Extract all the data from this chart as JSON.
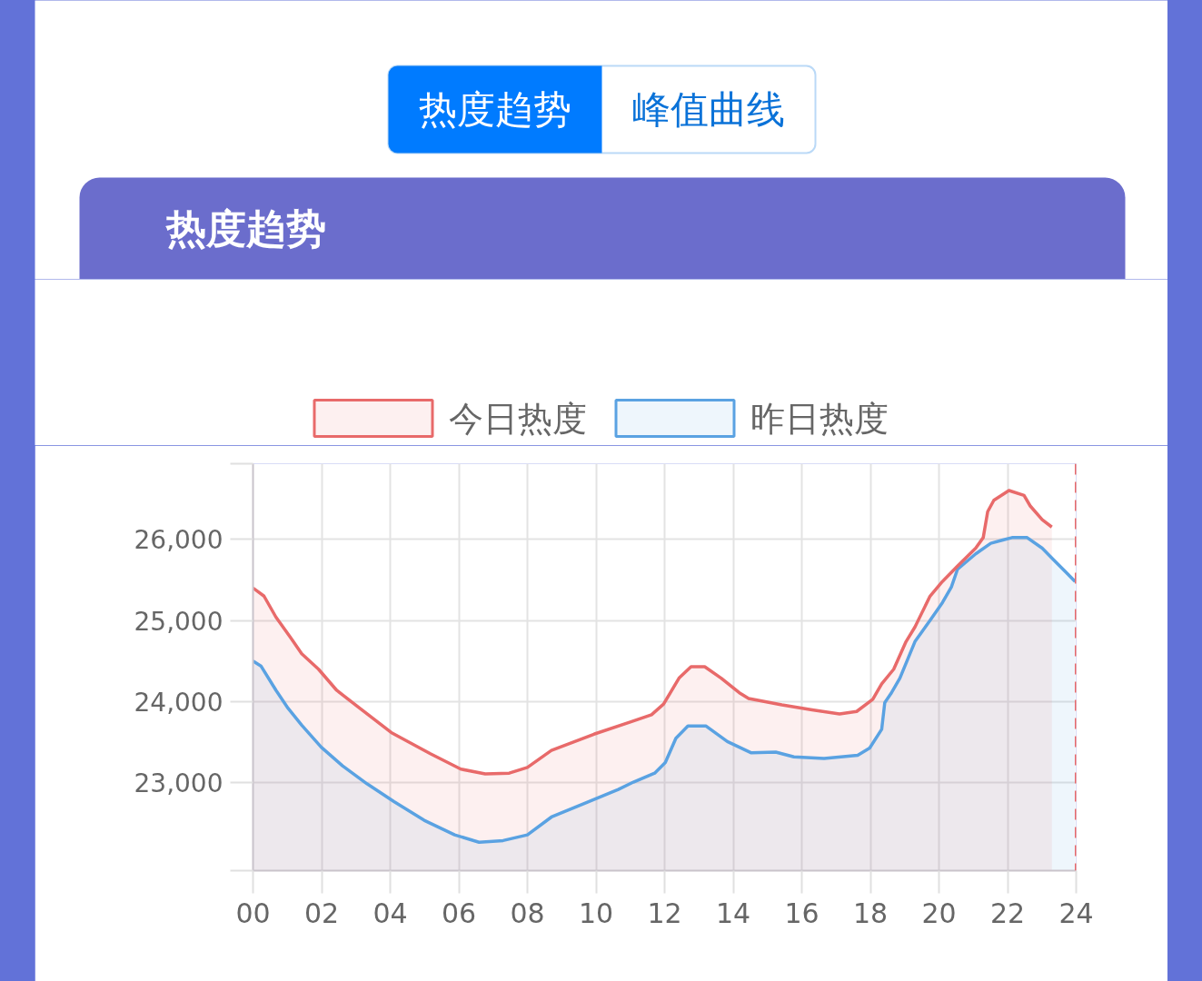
{
  "chart_data": {
    "type": "area",
    "title": "热度趋势",
    "annotations": [
      "热度趋势",
      "峰值曲线"
    ],
    "xlim": [
      0,
      24
    ],
    "xticks": [
      {
        "value": 0,
        "label": "00"
      },
      {
        "value": 2,
        "label": "02"
      },
      {
        "value": 4,
        "label": "04"
      },
      {
        "value": 6,
        "label": "06"
      },
      {
        "value": 8,
        "label": "08"
      },
      {
        "value": 10,
        "label": "10"
      },
      {
        "value": 12,
        "label": "12"
      },
      {
        "value": 14,
        "label": "14"
      },
      {
        "value": 16,
        "label": "16"
      },
      {
        "value": 18,
        "label": "18"
      },
      {
        "value": 20,
        "label": "20"
      },
      {
        "value": 22,
        "label": "22"
      },
      {
        "value": 24,
        "label": "24"
      }
    ],
    "ylim": [
      21920,
      26930
    ],
    "yticks": [
      {
        "value": 21920,
        "label": null
      },
      {
        "value": 23000,
        "label": "23,000"
      },
      {
        "value": 24000,
        "label": "24,000"
      },
      {
        "value": 25000,
        "label": "25,000"
      },
      {
        "value": 26000,
        "label": "26,000"
      },
      {
        "value": 26930,
        "label": null
      }
    ],
    "grid": true,
    "legend": "top",
    "ref_lines": [
      {
        "axis": "x",
        "value": 24,
        "color": "#e86a6a",
        "line_style": "dashed"
      }
    ],
    "series": [
      {
        "name": "今日热度",
        "color": "#e86a6a",
        "x": [
          0,
          0.32,
          0.67,
          1.11,
          1.42,
          1.91,
          2.44,
          3.05,
          4.03,
          5.17,
          6.06,
          6.77,
          7.47,
          8.0,
          8.7,
          9.94,
          11.0,
          11.62,
          11.97,
          12.42,
          12.77,
          13.17,
          13.65,
          14.18,
          14.45,
          15.42,
          16.3,
          17.1,
          17.6,
          18.07,
          18.33,
          18.68,
          19.04,
          19.3,
          19.74,
          20.1,
          20.54,
          21.07,
          21.29,
          21.42,
          21.6,
          22.04,
          22.48,
          22.66,
          23.01,
          23.29
        ],
        "values": [
          25400,
          25300,
          25040,
          24780,
          24590,
          24400,
          24140,
          23940,
          23620,
          23360,
          23170,
          23110,
          23120,
          23190,
          23400,
          23600,
          23750,
          23840,
          23970,
          24290,
          24430,
          24430,
          24290,
          24110,
          24040,
          23960,
          23900,
          23850,
          23880,
          24030,
          24220,
          24400,
          24740,
          24920,
          25300,
          25480,
          25670,
          25890,
          26020,
          26340,
          26480,
          26600,
          26540,
          26410,
          26240,
          26150
        ]
      },
      {
        "name": "昨日热度",
        "color": "#5aa2e2",
        "x": [
          0,
          0.23,
          0.67,
          1.02,
          1.42,
          1.99,
          2.61,
          3.32,
          4.11,
          4.99,
          5.88,
          6.59,
          7.29,
          8.0,
          8.7,
          9.67,
          10.65,
          11.09,
          11.71,
          12.02,
          12.33,
          12.68,
          13.21,
          13.83,
          14.53,
          15.24,
          15.77,
          16.65,
          17.63,
          17.98,
          18.33,
          18.42,
          18.6,
          18.86,
          19.3,
          19.74,
          20.1,
          20.36,
          20.54,
          21.07,
          21.51,
          21.86,
          22.13,
          22.57,
          23.01,
          23.36,
          23.71,
          23.97
        ],
        "values": [
          24500,
          24440,
          24140,
          23920,
          23710,
          23440,
          23210,
          22990,
          22770,
          22540,
          22360,
          22270,
          22290,
          22360,
          22580,
          22750,
          22920,
          23010,
          23120,
          23250,
          23550,
          23700,
          23700,
          23510,
          23370,
          23380,
          23320,
          23300,
          23340,
          23430,
          23660,
          23990,
          24100,
          24290,
          24740,
          25000,
          25220,
          25410,
          25630,
          25820,
          25950,
          25990,
          26020,
          26020,
          25890,
          25740,
          25590,
          25480
        ]
      }
    ]
  }
}
